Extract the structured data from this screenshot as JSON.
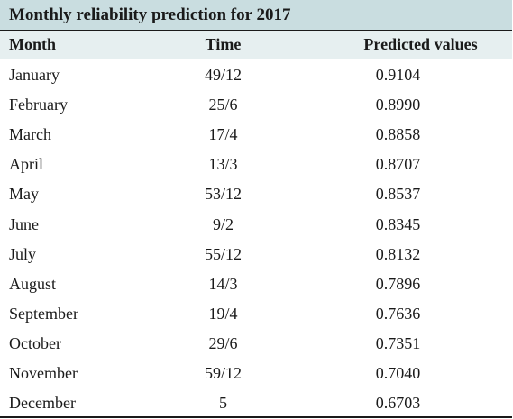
{
  "table": {
    "title": "Monthly reliability prediction for 2017",
    "columns": [
      "Month",
      "Time",
      "Predicted values"
    ],
    "rows": [
      {
        "month": "January",
        "time": "49/12",
        "value": "0.9104"
      },
      {
        "month": "February",
        "time": "25/6",
        "value": "0.8990"
      },
      {
        "month": "March",
        "time": "17/4",
        "value": "0.8858"
      },
      {
        "month": "April",
        "time": "13/3",
        "value": "0.8707"
      },
      {
        "month": "May",
        "time": "53/12",
        "value": "0.8537"
      },
      {
        "month": "June",
        "time": "9/2",
        "value": "0.8345"
      },
      {
        "month": "July",
        "time": "55/12",
        "value": "0.8132"
      },
      {
        "month": "August",
        "time": "14/3",
        "value": "0.7896"
      },
      {
        "month": "September",
        "time": "19/4",
        "value": "0.7636"
      },
      {
        "month": "October",
        "time": "29/6",
        "value": "0.7351"
      },
      {
        "month": "November",
        "time": "59/12",
        "value": "0.7040"
      },
      {
        "month": "December",
        "time": "5",
        "value": "0.6703"
      }
    ]
  },
  "colors": {
    "caption_bg": "#c9dde0",
    "header_bg": "#e6eff0",
    "rule": "#1a1a1a"
  }
}
